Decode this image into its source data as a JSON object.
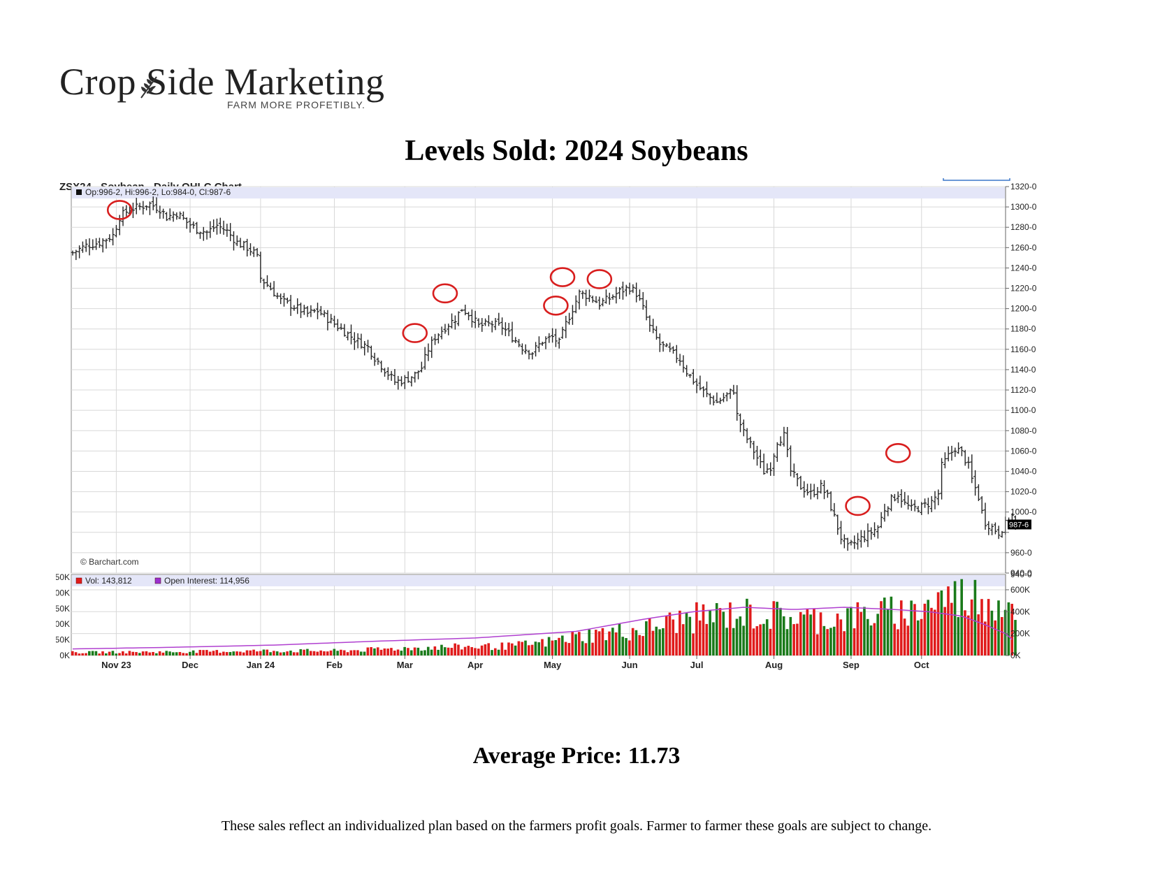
{
  "brand": {
    "name": "Crop Side Marketing",
    "tagline": "FARM MORE PROFETIBLY."
  },
  "page_title": "Levels Sold: 2024 Soybeans",
  "average_price_label": "Average Price: 11.73",
  "disclaimer": "These sales reflect an individualized plan based on the farmers profit goals.  Farmer to farmer these goals are subject to change.",
  "chart_data": {
    "type": "ohlc",
    "title": "ZSX24 - Soybean - Daily OHLC Chart",
    "ohlc_legend": "Op:996-2, Hi:996-2, Lo:984-0, Cl:987-6",
    "last_price_label": "987-6",
    "last_price": 987.75,
    "watermark": "© Barchart.com",
    "x_months": [
      {
        "label": "Nov 23",
        "x": 13
      },
      {
        "label": "Dec",
        "x": 35
      },
      {
        "label": "Jan 24",
        "x": 56
      },
      {
        "label": "Feb",
        "x": 78
      },
      {
        "label": "Mar",
        "x": 99
      },
      {
        "label": "Apr",
        "x": 120
      },
      {
        "label": "May",
        "x": 143
      },
      {
        "label": "Jun",
        "x": 166
      },
      {
        "label": "Jul",
        "x": 186
      },
      {
        "label": "Aug",
        "x": 209
      },
      {
        "label": "Sep",
        "x": 232
      },
      {
        "label": "Oct",
        "x": 253
      }
    ],
    "ylim": [
      940,
      1320
    ],
    "y_ticks": [
      {
        "v": 940,
        "label": "940-0"
      },
      {
        "v": 960,
        "label": "960-0"
      },
      {
        "v": 980,
        "label": ""
      },
      {
        "v": 1000,
        "label": "1000-0"
      },
      {
        "v": 1020,
        "label": "1020-0"
      },
      {
        "v": 1040,
        "label": "1040-0"
      },
      {
        "v": 1060,
        "label": "1060-0"
      },
      {
        "v": 1080,
        "label": "1080-0"
      },
      {
        "v": 1100,
        "label": "1100-0"
      },
      {
        "v": 1120,
        "label": "1120-0"
      },
      {
        "v": 1140,
        "label": "1140-0"
      },
      {
        "v": 1160,
        "label": "1160-0"
      },
      {
        "v": 1180,
        "label": "1180-0"
      },
      {
        "v": 1200,
        "label": "1200-0"
      },
      {
        "v": 1220,
        "label": "1220-0"
      },
      {
        "v": 1240,
        "label": "1240-0"
      },
      {
        "v": 1260,
        "label": "1260-0"
      },
      {
        "v": 1280,
        "label": "1280-0"
      },
      {
        "v": 1300,
        "label": "1300-0"
      },
      {
        "v": 1320,
        "label": "1320-0"
      }
    ],
    "x_max": 272,
    "close_path": [
      [
        0,
        1255
      ],
      [
        4,
        1262
      ],
      [
        8,
        1265
      ],
      [
        12,
        1272
      ],
      [
        14,
        1290
      ],
      [
        17,
        1298
      ],
      [
        20,
        1300
      ],
      [
        23,
        1303
      ],
      [
        26,
        1298
      ],
      [
        28,
        1290
      ],
      [
        31,
        1294
      ],
      [
        34,
        1285
      ],
      [
        37,
        1278
      ],
      [
        40,
        1275
      ],
      [
        43,
        1282
      ],
      [
        46,
        1276
      ],
      [
        49,
        1265
      ],
      [
        52,
        1260
      ],
      [
        54,
        1255
      ],
      [
        55,
        1250
      ],
      [
        56,
        1230
      ],
      [
        59,
        1220
      ],
      [
        62,
        1208
      ],
      [
        66,
        1202
      ],
      [
        70,
        1195
      ],
      [
        73,
        1198
      ],
      [
        76,
        1190
      ],
      [
        80,
        1180
      ],
      [
        84,
        1170
      ],
      [
        88,
        1162
      ],
      [
        90,
        1152
      ],
      [
        93,
        1140
      ],
      [
        96,
        1128
      ],
      [
        99,
        1130
      ],
      [
        102,
        1135
      ],
      [
        104,
        1142
      ],
      [
        106,
        1160
      ],
      [
        108,
        1172
      ],
      [
        111,
        1182
      ],
      [
        114,
        1190
      ],
      [
        116,
        1200
      ],
      [
        118,
        1195
      ],
      [
        121,
        1183
      ],
      [
        125,
        1185
      ],
      [
        128,
        1182
      ],
      [
        131,
        1172
      ],
      [
        134,
        1162
      ],
      [
        137,
        1157
      ],
      [
        140,
        1168
      ],
      [
        143,
        1172
      ],
      [
        145,
        1166
      ],
      [
        147,
        1185
      ],
      [
        149,
        1200
      ],
      [
        151,
        1215
      ],
      [
        154,
        1212
      ],
      [
        157,
        1205
      ],
      [
        160,
        1210
      ],
      [
        163,
        1217
      ],
      [
        166,
        1221
      ],
      [
        168,
        1215
      ],
      [
        170,
        1200
      ],
      [
        172,
        1182
      ],
      [
        175,
        1165
      ],
      [
        178,
        1158
      ],
      [
        181,
        1150
      ],
      [
        183,
        1138
      ],
      [
        186,
        1125
      ],
      [
        189,
        1115
      ],
      [
        192,
        1108
      ],
      [
        195,
        1115
      ],
      [
        197,
        1120
      ],
      [
        198,
        1095
      ],
      [
        200,
        1078
      ],
      [
        203,
        1060
      ],
      [
        206,
        1040
      ],
      [
        208,
        1045
      ],
      [
        210,
        1070
      ],
      [
        212,
        1075
      ],
      [
        214,
        1040
      ],
      [
        217,
        1025
      ],
      [
        220,
        1018
      ],
      [
        223,
        1025
      ],
      [
        225,
        1015
      ],
      [
        227,
        995
      ],
      [
        229,
        975
      ],
      [
        231,
        965
      ],
      [
        234,
        972
      ],
      [
        237,
        978
      ],
      [
        240,
        985
      ],
      [
        242,
        1003
      ],
      [
        244,
        1012
      ],
      [
        246,
        1018
      ],
      [
        248,
        1008
      ],
      [
        250,
        1003
      ],
      [
        253,
        1005
      ],
      [
        256,
        1010
      ],
      [
        258,
        1018
      ],
      [
        259,
        1045
      ],
      [
        261,
        1055
      ],
      [
        263,
        1063
      ],
      [
        265,
        1058
      ],
      [
        267,
        1045
      ],
      [
        268,
        1032
      ],
      [
        270,
        1015
      ],
      [
        271,
        1000
      ],
      [
        272,
        990
      ],
      [
        274,
        985
      ],
      [
        276,
        980
      ],
      [
        278,
        988
      ],
      [
        280,
        996
      ],
      [
        281,
        988
      ]
    ],
    "sale_marks": [
      {
        "x": 14,
        "price": 1297
      },
      {
        "x": 102,
        "price": 1176
      },
      {
        "x": 111,
        "price": 1215
      },
      {
        "x": 144,
        "price": 1203
      },
      {
        "x": 146,
        "price": 1231
      },
      {
        "x": 157,
        "price": 1229
      },
      {
        "x": 234,
        "price": 1006
      },
      {
        "x": 246,
        "price": 1058
      }
    ],
    "volume_panel": {
      "vol_legend": "Vol: 143,812",
      "oi_legend": "Open Interest: 114,956",
      "left_axis_labels": [
        "50K",
        "00K",
        "50K",
        "00K",
        "50K",
        "0K"
      ],
      "right_axis_ticks": [
        {
          "v": 0,
          "label": "0K"
        },
        {
          "v": 200,
          "label": "200K"
        },
        {
          "v": 400,
          "label": "400K"
        },
        {
          "v": 600,
          "label": "600K"
        }
      ],
      "ylim": [
        0,
        740
      ],
      "colors": {
        "up": "#1a7a1a",
        "down": "#e01b1b",
        "oi": "#b040d0"
      },
      "volume_profile": [
        [
          0,
          30
        ],
        [
          30,
          35
        ],
        [
          55,
          45
        ],
        [
          80,
          45
        ],
        [
          95,
          65
        ],
        [
          110,
          80
        ],
        [
          130,
          90
        ],
        [
          140,
          120
        ],
        [
          150,
          180
        ],
        [
          160,
          220
        ],
        [
          170,
          250
        ],
        [
          180,
          330
        ],
        [
          190,
          380
        ],
        [
          200,
          400
        ],
        [
          210,
          380
        ],
        [
          220,
          350
        ],
        [
          230,
          360
        ],
        [
          240,
          400
        ],
        [
          250,
          420
        ],
        [
          260,
          560
        ],
        [
          270,
          560
        ],
        [
          281,
          500
        ]
      ],
      "oi_curve": [
        [
          0,
          60
        ],
        [
          30,
          75
        ],
        [
          60,
          95
        ],
        [
          90,
          130
        ],
        [
          120,
          160
        ],
        [
          150,
          220
        ],
        [
          170,
          330
        ],
        [
          185,
          400
        ],
        [
          200,
          440
        ],
        [
          215,
          420
        ],
        [
          230,
          440
        ],
        [
          245,
          420
        ],
        [
          255,
          400
        ],
        [
          265,
          360
        ],
        [
          272,
          280
        ],
        [
          278,
          200
        ],
        [
          281,
          120
        ]
      ]
    },
    "colors": {
      "bar": "#222222",
      "sale_circle": "#d81e1e",
      "grid": "#d8d8d8",
      "legend_band": "#e4e6f8"
    }
  }
}
